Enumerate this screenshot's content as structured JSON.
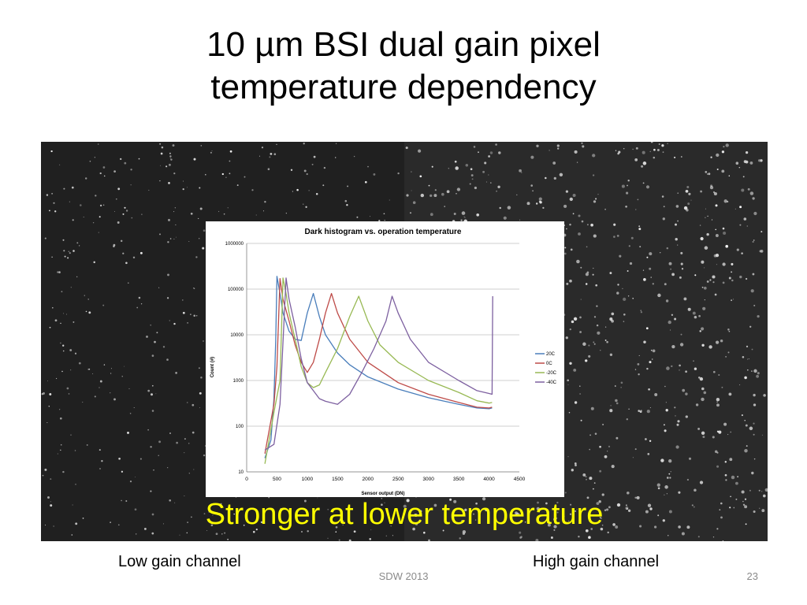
{
  "slide": {
    "title_line1": "10 µm BSI dual gain pixel",
    "title_line2": "temperature dependency",
    "caption": "Stronger at lower temperature",
    "left_label": "Low gain channel",
    "right_label": "High gain channel",
    "footer": "SDW 2013",
    "page_number": "23",
    "caption_color": "#ffff00"
  },
  "chart_data": {
    "type": "line",
    "title": "Dark histogram vs. operation temperature",
    "xlabel": "Sensor output (DN)",
    "ylabel": "Count (#)",
    "xlim": [
      0,
      4500
    ],
    "ylim": [
      10,
      1000000
    ],
    "yscale": "log",
    "x_ticks": [
      "0",
      "500",
      "1000",
      "1500",
      "2000",
      "2500",
      "3000",
      "3500",
      "4000",
      "4500"
    ],
    "y_ticks": [
      "10",
      "100",
      "1000",
      "10000",
      "100000",
      "1000000"
    ],
    "grid": true,
    "legend_position": "right",
    "series": [
      {
        "name": "20C",
        "color": "#4a7ebb",
        "points": [
          [
            300,
            20
          ],
          [
            400,
            50
          ],
          [
            450,
            400
          ],
          [
            480,
            8000
          ],
          [
            500,
            190000
          ],
          [
            550,
            80000
          ],
          [
            600,
            30000
          ],
          [
            700,
            12000
          ],
          [
            800,
            8000
          ],
          [
            900,
            7500
          ],
          [
            1000,
            30000
          ],
          [
            1100,
            80000
          ],
          [
            1200,
            25000
          ],
          [
            1300,
            10000
          ],
          [
            1500,
            4000
          ],
          [
            1700,
            2200
          ],
          [
            2000,
            1200
          ],
          [
            2500,
            650
          ],
          [
            3000,
            420
          ],
          [
            3500,
            300
          ],
          [
            3800,
            250
          ],
          [
            4000,
            240
          ],
          [
            4050,
            250
          ]
        ]
      },
      {
        "name": "0C",
        "color": "#be4b48",
        "points": [
          [
            300,
            25
          ],
          [
            450,
            300
          ],
          [
            500,
            2000
          ],
          [
            550,
            170000
          ],
          [
            600,
            60000
          ],
          [
            700,
            20000
          ],
          [
            800,
            6000
          ],
          [
            900,
            2500
          ],
          [
            1000,
            1500
          ],
          [
            1100,
            2500
          ],
          [
            1200,
            8000
          ],
          [
            1300,
            30000
          ],
          [
            1400,
            80000
          ],
          [
            1500,
            30000
          ],
          [
            1700,
            8000
          ],
          [
            2000,
            2500
          ],
          [
            2500,
            900
          ],
          [
            3000,
            500
          ],
          [
            3500,
            330
          ],
          [
            3800,
            260
          ],
          [
            4000,
            250
          ],
          [
            4050,
            260
          ]
        ]
      },
      {
        "name": "-20C",
        "color": "#98b954",
        "points": [
          [
            300,
            15
          ],
          [
            450,
            200
          ],
          [
            550,
            1000
          ],
          [
            600,
            175000
          ],
          [
            650,
            80000
          ],
          [
            700,
            30000
          ],
          [
            800,
            8000
          ],
          [
            900,
            2000
          ],
          [
            1000,
            900
          ],
          [
            1100,
            700
          ],
          [
            1200,
            800
          ],
          [
            1300,
            1500
          ],
          [
            1500,
            5000
          ],
          [
            1700,
            25000
          ],
          [
            1850,
            70000
          ],
          [
            2000,
            20000
          ],
          [
            2200,
            6000
          ],
          [
            2500,
            2500
          ],
          [
            3000,
            1000
          ],
          [
            3500,
            550
          ],
          [
            3800,
            360
          ],
          [
            4000,
            320
          ],
          [
            4050,
            330
          ]
        ]
      },
      {
        "name": "-40C",
        "color": "#7d60a0",
        "points": [
          [
            300,
            30
          ],
          [
            450,
            40
          ],
          [
            550,
            300
          ],
          [
            650,
            175000
          ],
          [
            700,
            60000
          ],
          [
            800,
            15000
          ],
          [
            900,
            3000
          ],
          [
            1000,
            900
          ],
          [
            1100,
            600
          ],
          [
            1200,
            400
          ],
          [
            1300,
            350
          ],
          [
            1500,
            300
          ],
          [
            1700,
            500
          ],
          [
            1900,
            1500
          ],
          [
            2100,
            5000
          ],
          [
            2300,
            20000
          ],
          [
            2400,
            70000
          ],
          [
            2500,
            30000
          ],
          [
            2700,
            8000
          ],
          [
            3000,
            2500
          ],
          [
            3500,
            1000
          ],
          [
            3800,
            600
          ],
          [
            4000,
            520
          ],
          [
            4050,
            500
          ],
          [
            4060,
            70000
          ]
        ]
      }
    ]
  }
}
